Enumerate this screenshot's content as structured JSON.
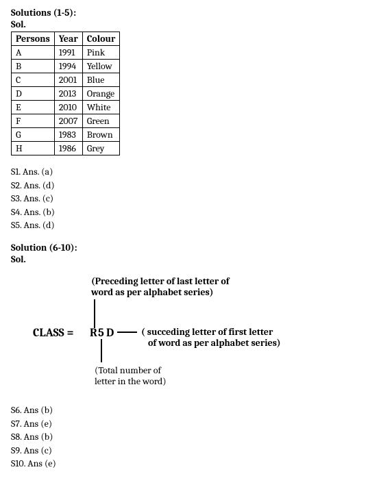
{
  "section1": {
    "heading": "Solutions (1-5):",
    "sol": "Sol.",
    "table": {
      "columns": [
        "Persons",
        "Year",
        "Colour"
      ],
      "rows": [
        [
          "A",
          "1991",
          "Pink"
        ],
        [
          "B",
          "1994",
          "Yellow"
        ],
        [
          "C",
          "2001",
          "Blue"
        ],
        [
          "D",
          "2013",
          "Orange"
        ],
        [
          "E",
          "2010",
          "White"
        ],
        [
          "F",
          "2007",
          "Green"
        ],
        [
          "G",
          "1983",
          "Brown"
        ],
        [
          "H",
          "1986",
          "Grey"
        ]
      ]
    },
    "answers": [
      "S1. Ans. (a)",
      "S2. Ans. (d)",
      "S3. Ans. (c)",
      "S4. Ans. (b)",
      "S5. Ans. (d)"
    ]
  },
  "section2": {
    "heading": "Solution (6-10):",
    "sol": "Sol.",
    "diagram": {
      "class_label": "CLASS =",
      "code": "R5D",
      "note_top1": "(Preceding letter of last letter of",
      "note_top2": "word as per alphabet series)",
      "note_right1": "( succeding letter of first letter",
      "note_right2": "of word as per alphabet series)",
      "note_bottom1": "(Total number of",
      "note_bottom2": "letter in the word)"
    },
    "answers": [
      "S6. Ans (b)",
      "S7. Ans (e)",
      "S8. Ans (b)",
      "S9. Ans (c)",
      "S10. Ans (e)"
    ]
  }
}
